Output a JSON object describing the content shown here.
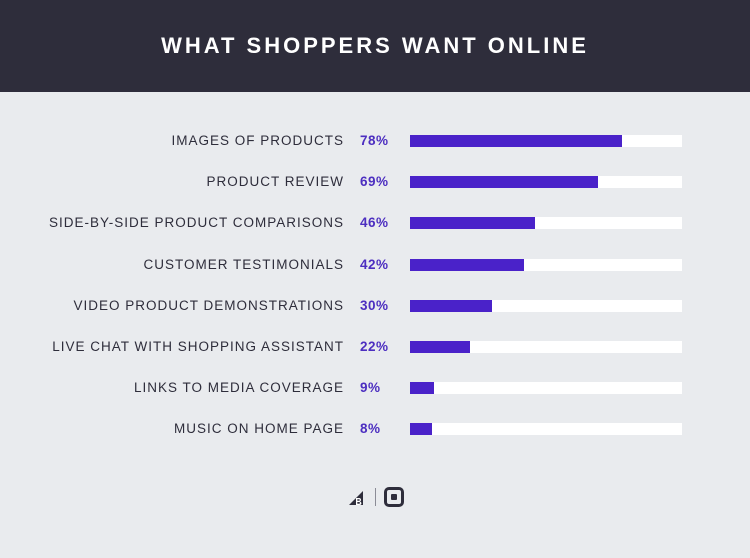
{
  "header": {
    "title": "WHAT SHOPPERS WANT ONLINE"
  },
  "colors": {
    "header_bg": "#2e2d3b",
    "page_bg": "#e9ebee",
    "bar_fill": "#4a22c9",
    "bar_track": "#ffffff",
    "value_text": "#4c2ec0",
    "label_text": "#2e2d3b"
  },
  "chart_data": {
    "type": "bar",
    "orientation": "horizontal",
    "title": "WHAT SHOPPERS WANT ONLINE",
    "xlabel": "",
    "ylabel": "",
    "xlim": [
      0,
      100
    ],
    "categories": [
      "IMAGES OF PRODUCTS",
      "PRODUCT REVIEW",
      "SIDE-BY-SIDE PRODUCT COMPARISONS",
      "CUSTOMER TESTIMONIALS",
      "VIDEO PRODUCT DEMONSTRATIONS",
      "LIVE CHAT WITH SHOPPING ASSISTANT",
      "LINKS TO MEDIA COVERAGE",
      "MUSIC ON HOME PAGE"
    ],
    "values": [
      78,
      69,
      46,
      42,
      30,
      22,
      9,
      8
    ],
    "value_labels": [
      "78%",
      "69%",
      "46%",
      "42%",
      "30%",
      "22%",
      "9%",
      "8%"
    ]
  },
  "footer": {
    "logos": [
      "bigcommerce-logo-icon",
      "square-logo-icon"
    ]
  }
}
